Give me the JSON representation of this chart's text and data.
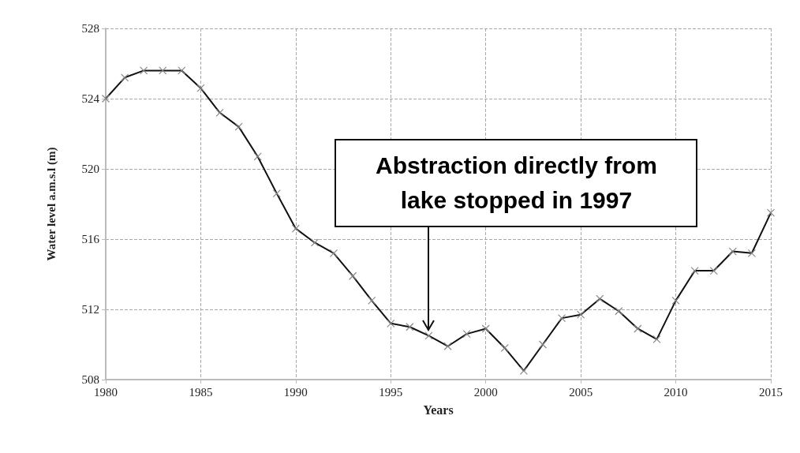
{
  "chart_data": {
    "type": "line",
    "xlabel": "Years",
    "ylabel": "Water level a.m.s.l (m)",
    "x": [
      1980,
      1981,
      1982,
      1983,
      1984,
      1985,
      1986,
      1987,
      1988,
      1989,
      1990,
      1991,
      1992,
      1993,
      1994,
      1995,
      1996,
      1997,
      1998,
      1999,
      2000,
      2001,
      2002,
      2003,
      2004,
      2005,
      2006,
      2007,
      2008,
      2009,
      2010,
      2011,
      2012,
      2013,
      2014,
      2015
    ],
    "series": [
      {
        "color": "#111111",
        "values": [
          524.0,
          525.2,
          525.6,
          525.6,
          525.6,
          524.6,
          523.2,
          522.4,
          520.7,
          518.6,
          516.6,
          515.8,
          515.2,
          513.9,
          512.5,
          511.2,
          511.0,
          510.5,
          509.9,
          510.6,
          510.9,
          509.8,
          508.5,
          510.0,
          511.5,
          511.7,
          512.6,
          511.9,
          510.9,
          510.3,
          512.5,
          514.2,
          514.2,
          515.3,
          515.2,
          517.5
        ]
      }
    ],
    "xlim": [
      1980,
      2015
    ],
    "xticks": [
      1980,
      1985,
      1990,
      1995,
      2000,
      2005,
      2010,
      2015
    ],
    "ylim": [
      508,
      528
    ],
    "yticks": [
      508,
      512,
      516,
      520,
      524,
      528
    ],
    "grid": true,
    "marker": "cross",
    "line_style": "solid",
    "annotations": [
      {
        "text": "Abstraction directly from lake stopped in 1997",
        "x": 1997,
        "y": 510.5
      }
    ]
  }
}
